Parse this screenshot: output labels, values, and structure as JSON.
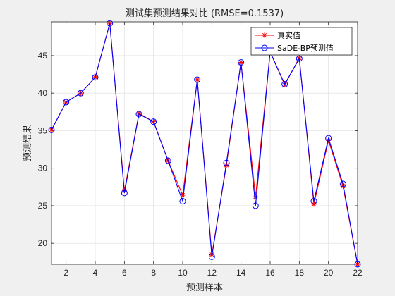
{
  "chart_data": {
    "type": "line",
    "title": "测试集预测结果对比 (RMSE=0.1537)",
    "xlabel": "预测样本",
    "ylabel": "预测结果",
    "xlim": [
      1,
      22
    ],
    "ylim": [
      17.2,
      49.5
    ],
    "x_ticks": [
      2,
      4,
      6,
      8,
      10,
      12,
      14,
      16,
      18,
      20,
      22
    ],
    "y_ticks": [
      20,
      25,
      30,
      35,
      40,
      45
    ],
    "grid": true,
    "legend_position": "top-right",
    "x": [
      1,
      2,
      3,
      4,
      5,
      6,
      7,
      8,
      9,
      10,
      11,
      12,
      13,
      14,
      15,
      16,
      17,
      18,
      19,
      20,
      21,
      22
    ],
    "series": [
      {
        "name": "真实值",
        "color": "#ff0000",
        "marker": "asterisk",
        "values": [
          35.1,
          38.8,
          40.0,
          42.1,
          49.3,
          27.0,
          37.3,
          36.2,
          31.0,
          26.4,
          41.8,
          18.5,
          30.4,
          44.1,
          26.2,
          45.5,
          41.1,
          44.7,
          25.2,
          33.7,
          27.6,
          17.2
        ]
      },
      {
        "name": "SaDE-BP预测值",
        "color": "#0000ff",
        "marker": "circle",
        "values": [
          35.1,
          38.8,
          40.0,
          42.1,
          49.3,
          26.7,
          37.2,
          36.2,
          31.0,
          25.6,
          41.8,
          18.2,
          30.7,
          44.1,
          25.0,
          45.5,
          41.2,
          44.6,
          25.6,
          34.0,
          27.9,
          17.2
        ]
      }
    ]
  }
}
